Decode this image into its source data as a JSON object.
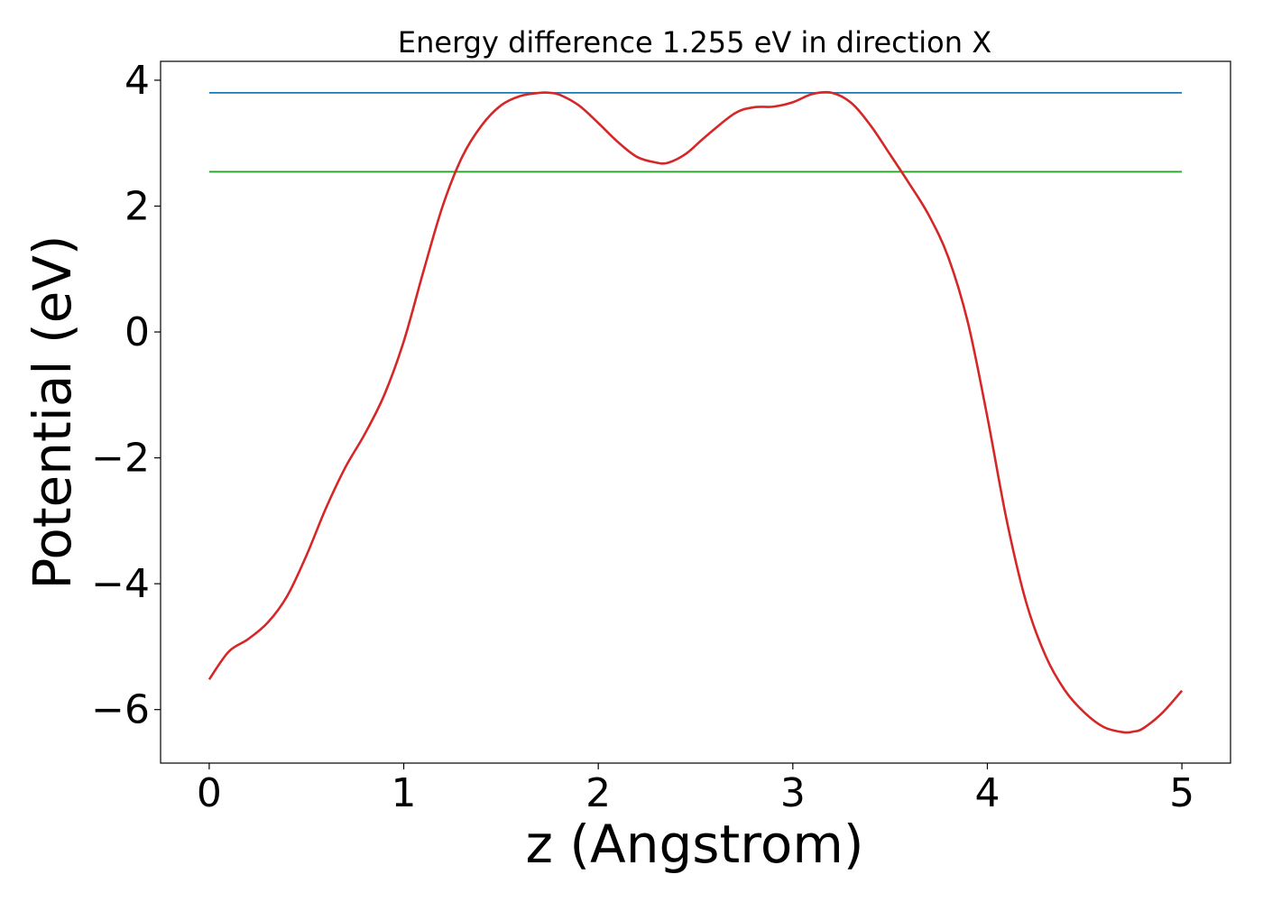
{
  "chart_data": {
    "type": "line",
    "title": "Energy difference 1.255 eV in direction X",
    "xlabel": "z (Angstrom)",
    "ylabel": "Potential (eV)",
    "xlim": [
      -0.25,
      5.25
    ],
    "ylim": [
      -6.85,
      4.3
    ],
    "x_ticks": [
      0,
      1,
      2,
      3,
      4,
      5
    ],
    "x_tick_labels": [
      "0",
      "1",
      "2",
      "3",
      "4",
      "5"
    ],
    "y_ticks": [
      -6,
      -4,
      -2,
      0,
      2,
      4
    ],
    "y_tick_labels": [
      "−6",
      "−4",
      "−2",
      "0",
      "2",
      "4"
    ],
    "grid": false,
    "series": [
      {
        "role": "potential",
        "color": "#d62728",
        "x": [
          0,
          0.1,
          0.2,
          0.3,
          0.4,
          0.5,
          0.6,
          0.7,
          0.8,
          0.9,
          1.0,
          1.1,
          1.2,
          1.3,
          1.4,
          1.5,
          1.6,
          1.7,
          1.75,
          1.8,
          1.9,
          2.0,
          2.1,
          2.2,
          2.3,
          2.36,
          2.45,
          2.55,
          2.7,
          2.8,
          2.9,
          3.0,
          3.1,
          3.2,
          3.3,
          3.4,
          3.5,
          3.6,
          3.7,
          3.8,
          3.9,
          4.0,
          4.1,
          4.2,
          4.3,
          4.4,
          4.5,
          4.6,
          4.7,
          4.75,
          4.8,
          4.9,
          5.0
        ],
        "y": [
          -5.52,
          -5.08,
          -4.88,
          -4.62,
          -4.2,
          -3.55,
          -2.8,
          -2.15,
          -1.62,
          -1.0,
          -0.15,
          0.95,
          2.0,
          2.78,
          3.28,
          3.6,
          3.75,
          3.8,
          3.8,
          3.77,
          3.6,
          3.32,
          3.02,
          2.78,
          2.69,
          2.69,
          2.83,
          3.1,
          3.47,
          3.57,
          3.58,
          3.65,
          3.78,
          3.8,
          3.64,
          3.28,
          2.82,
          2.35,
          1.85,
          1.18,
          0.15,
          -1.35,
          -3.0,
          -4.3,
          -5.15,
          -5.7,
          -6.05,
          -6.28,
          -6.36,
          -6.35,
          -6.3,
          -6.05,
          -5.7
        ]
      },
      {
        "role": "barrier-max",
        "color": "#1f77b4",
        "x": [
          0,
          5
        ],
        "y": [
          3.8,
          3.8
        ]
      },
      {
        "role": "barrier-level",
        "color": "#2ca02c",
        "x": [
          0,
          5
        ],
        "y": [
          2.545,
          2.545
        ]
      }
    ]
  }
}
